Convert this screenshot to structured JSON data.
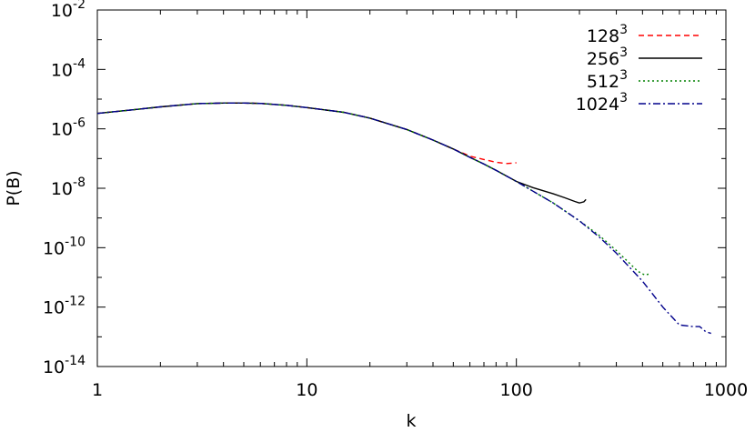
{
  "chart_data": {
    "type": "line",
    "xlabel": "k",
    "ylabel": "P(B)",
    "xscale": "log",
    "yscale": "log",
    "xlim": [
      1,
      1000
    ],
    "ylim": [
      1e-14,
      0.01
    ],
    "legend_position": "top-right",
    "x_ticks": [
      {
        "value": 1,
        "label": "1"
      },
      {
        "value": 10,
        "label": "10"
      },
      {
        "value": 100,
        "label": "100"
      },
      {
        "value": 1000,
        "label": "1000"
      }
    ],
    "y_ticks": [
      {
        "value": 0.01,
        "base": "10",
        "exp": "-2"
      },
      {
        "value": 0.0001,
        "base": "10",
        "exp": "-4"
      },
      {
        "value": 1e-06,
        "base": "10",
        "exp": "-6"
      },
      {
        "value": 1e-08,
        "base": "10",
        "exp": "-8"
      },
      {
        "value": 1e-10,
        "base": "10",
        "exp": "-10"
      },
      {
        "value": 1e-12,
        "base": "10",
        "exp": "-12"
      },
      {
        "value": 1e-14,
        "base": "10",
        "exp": "-14"
      }
    ],
    "series": [
      {
        "name_base": "128",
        "name_exp": "3",
        "color": "#ff0000",
        "dash": "6,4",
        "x": [
          1,
          1.5,
          2,
          3,
          4,
          5,
          6,
          8,
          10,
          15,
          20,
          30,
          40,
          50,
          60,
          70,
          80,
          90,
          100
        ],
        "y": [
          3.3e-06,
          4.4e-06,
          5.5e-06,
          7.1e-06,
          7.4e-06,
          7.4e-06,
          7.2e-06,
          6.2e-06,
          5.2e-06,
          3.6e-06,
          2.3e-06,
          9.5e-07,
          4.2e-07,
          2.1e-07,
          1.2e-07,
          9.3e-08,
          7.5e-08,
          6.8e-08,
          7.2e-08
        ]
      },
      {
        "name_base": "256",
        "name_exp": "3",
        "color": "#000000",
        "dash": "",
        "x": [
          1,
          1.5,
          2,
          3,
          4,
          5,
          6,
          8,
          10,
          15,
          20,
          30,
          40,
          50,
          60,
          70,
          80,
          100,
          120,
          150,
          170,
          190,
          200,
          210,
          215
        ],
        "y": [
          3.3e-06,
          4.4e-06,
          5.5e-06,
          7.1e-06,
          7.4e-06,
          7.4e-06,
          7.2e-06,
          6.2e-06,
          5.2e-06,
          3.6e-06,
          2.3e-06,
          9.5e-07,
          4.2e-07,
          2.1e-07,
          1.1e-07,
          6.5e-08,
          4e-08,
          1.7e-08,
          1.05e-08,
          6.5e-09,
          4.8e-09,
          3.6e-09,
          3.2e-09,
          3.5e-09,
          4.2e-09
        ]
      },
      {
        "name_base": "512",
        "name_exp": "3",
        "color": "#008000",
        "dash": "2,3",
        "x": [
          1,
          1.5,
          2,
          3,
          4,
          5,
          6,
          8,
          10,
          15,
          20,
          30,
          40,
          50,
          60,
          70,
          80,
          100,
          120,
          150,
          200,
          250,
          300,
          350,
          380,
          410,
          430
        ],
        "y": [
          3.3e-06,
          4.4e-06,
          5.5e-06,
          7.1e-06,
          7.4e-06,
          7.4e-06,
          7.2e-06,
          6.2e-06,
          5.2e-06,
          3.6e-06,
          2.3e-06,
          9.5e-07,
          4.2e-07,
          2.1e-07,
          1.1e-07,
          6.5e-08,
          4e-08,
          1.7e-08,
          8e-09,
          3.2e-09,
          8e-10,
          2.5e-10,
          8e-11,
          2.8e-11,
          1.6e-11,
          1.2e-11,
          1.3e-11
        ]
      },
      {
        "name_base": "1024",
        "name_exp": "3",
        "color": "#00008b",
        "dash": "8,3,2,3",
        "x": [
          1,
          1.5,
          2,
          3,
          4,
          5,
          6,
          8,
          10,
          15,
          20,
          30,
          40,
          50,
          60,
          70,
          80,
          100,
          120,
          150,
          200,
          250,
          300,
          400,
          500,
          600,
          700,
          750,
          800,
          850
        ],
        "y": [
          3.3e-06,
          4.4e-06,
          5.5e-06,
          7.1e-06,
          7.4e-06,
          7.4e-06,
          7.2e-06,
          6.2e-06,
          5.2e-06,
          3.6e-06,
          2.3e-06,
          9.5e-07,
          4.2e-07,
          2.1e-07,
          1.1e-07,
          6.5e-08,
          4e-08,
          1.7e-08,
          8e-09,
          3.2e-09,
          8e-10,
          2.2e-10,
          6.5e-11,
          7.5e-12,
          1e-12,
          2.5e-13,
          2.2e-13,
          2.2e-13,
          1.5e-13,
          1.3e-13
        ]
      }
    ]
  }
}
